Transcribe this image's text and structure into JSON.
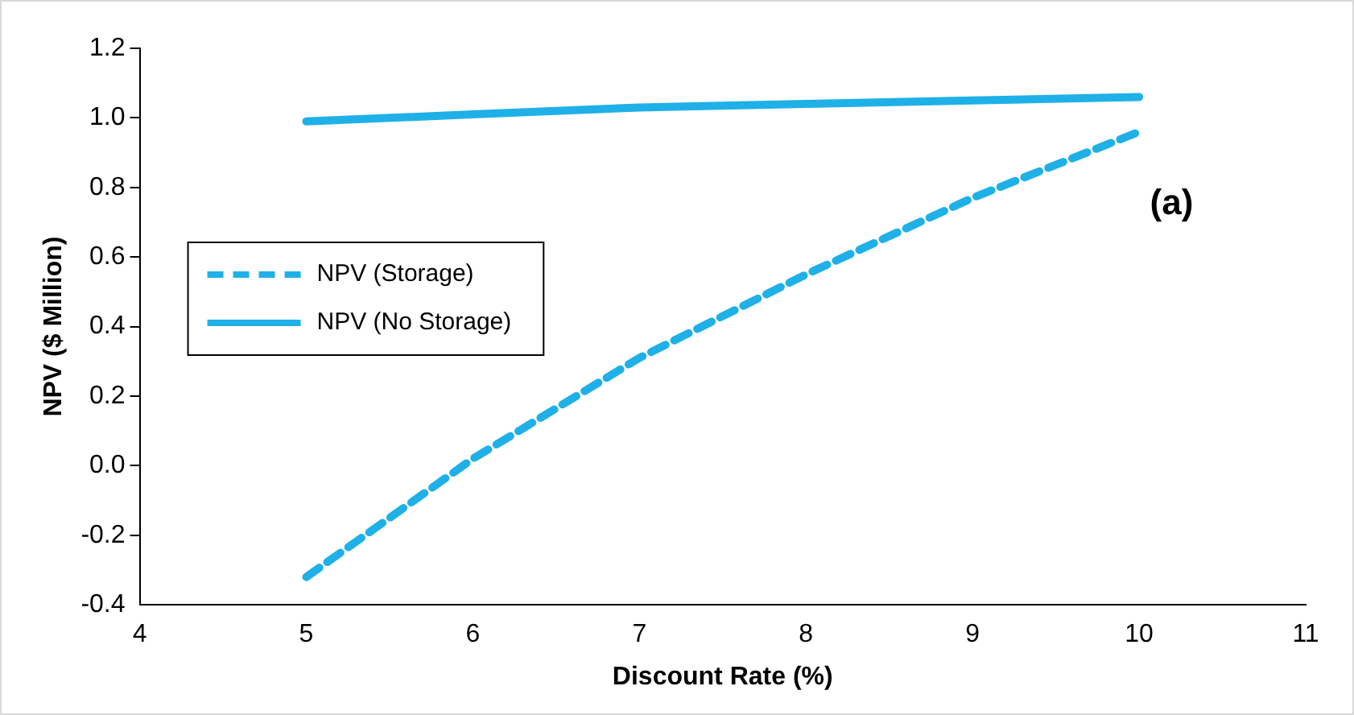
{
  "chart_data": {
    "type": "line",
    "xlabel": "Discount Rate (%)",
    "ylabel": "NPV ($ Million)",
    "x": [
      5,
      6,
      7,
      8,
      9,
      10
    ],
    "series": [
      {
        "name": "NPV (Storage)",
        "color": "#1fb0e8",
        "line_style": "dashed",
        "values": [
          -0.32,
          0.02,
          0.31,
          0.55,
          0.77,
          0.96
        ]
      },
      {
        "name": "NPV (No Storage)",
        "color": "#1fb0e8",
        "line_style": "solid",
        "values": [
          0.99,
          1.01,
          1.03,
          1.04,
          1.05,
          1.06
        ]
      }
    ],
    "xlim": [
      4,
      11
    ],
    "xticks": [
      4,
      5,
      6,
      7,
      8,
      9,
      10,
      11
    ],
    "ylim": [
      -0.4,
      1.2
    ],
    "yticks": [
      {
        "value": -0.4,
        "label": "-0.4"
      },
      {
        "value": -0.2,
        "label": "-0.2"
      },
      {
        "value": 0,
        "label": "0.0"
      },
      {
        "value": 0.2,
        "label": "0.2"
      },
      {
        "value": 0.4,
        "label": "0.4"
      },
      {
        "value": 0.6,
        "label": "0.6"
      },
      {
        "value": 0.8,
        "label": "0.8"
      },
      {
        "value": 1.0,
        "label": "1.0"
      },
      {
        "value": 1.2,
        "label": "1.2"
      }
    ],
    "annotations": [
      "(a)"
    ],
    "legend": "left",
    "grid": false,
    "marker": "none"
  }
}
